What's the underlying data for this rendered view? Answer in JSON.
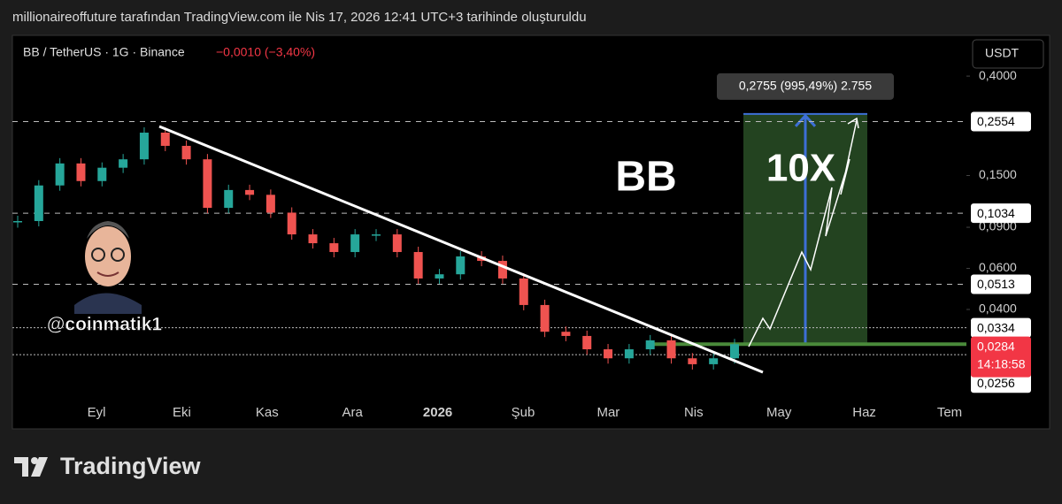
{
  "caption": "millionaireoffuture tarafından TradingView.com ile Nis 17, 2026 12:41 UTC+3 tarihinde oluşturuldu",
  "chart_data": {
    "type": "candlestick",
    "symbol": "BB / TetherUS · 1G · Binance",
    "change": "−0,0010 (−3,40%)",
    "currency": "USDT",
    "log_scale": true,
    "closes": [
      0.0957,
      0.136,
      0.169,
      0.142,
      0.162,
      0.176,
      0.229,
      0.201,
      0.176,
      0.109,
      0.13,
      0.124,
      0.104,
      0.0839,
      0.0769,
      0.0705,
      0.0839,
      0.0839,
      0.0705,
      0.0543,
      0.0566,
      0.0675,
      0.0646,
      0.0543,
      0.0418,
      0.0321,
      0.0308,
      0.027,
      0.0247,
      0.027,
      0.0295,
      0.0247,
      0.0233,
      0.0247,
      0.0284
    ],
    "up_color": "#26a69a",
    "down_color": "#ef5350",
    "ylim": [
      0.016,
      0.598
    ],
    "yticks": [
      {
        "value": 0.4,
        "label": "0,4000"
      },
      {
        "value": 0.15,
        "label": "0,1500"
      },
      {
        "value": 0.09,
        "label": "0,0900"
      },
      {
        "value": 0.06,
        "label": "0,0600"
      },
      {
        "value": 0.04,
        "label": "0,0400"
      }
    ],
    "price_lines": [
      {
        "value": 0.2554,
        "label": "0,2554"
      },
      {
        "value": 0.1034,
        "label": "0,1034"
      },
      {
        "value": 0.0513,
        "label": "0,0513"
      },
      {
        "value": 0.0334,
        "label": "0,0334"
      },
      {
        "value": 0.0256,
        "label": "0,0256"
      }
    ],
    "current_price": {
      "value": 0.0284,
      "label": "0,0284",
      "countdown": "14:18:58",
      "color": "#f23645"
    },
    "x_labels": [
      "Eyl",
      "Eki",
      "Kas",
      "Ara",
      "2026",
      "Şub",
      "Mar",
      "Nis",
      "May",
      "Haz",
      "Tem"
    ],
    "target": {
      "value": 0.2755,
      "label": "0,2755 (995,49%) 2.755"
    },
    "annotations": [
      "BB",
      "10X",
      "@coinmatik1"
    ]
  },
  "logo": "TradingView"
}
